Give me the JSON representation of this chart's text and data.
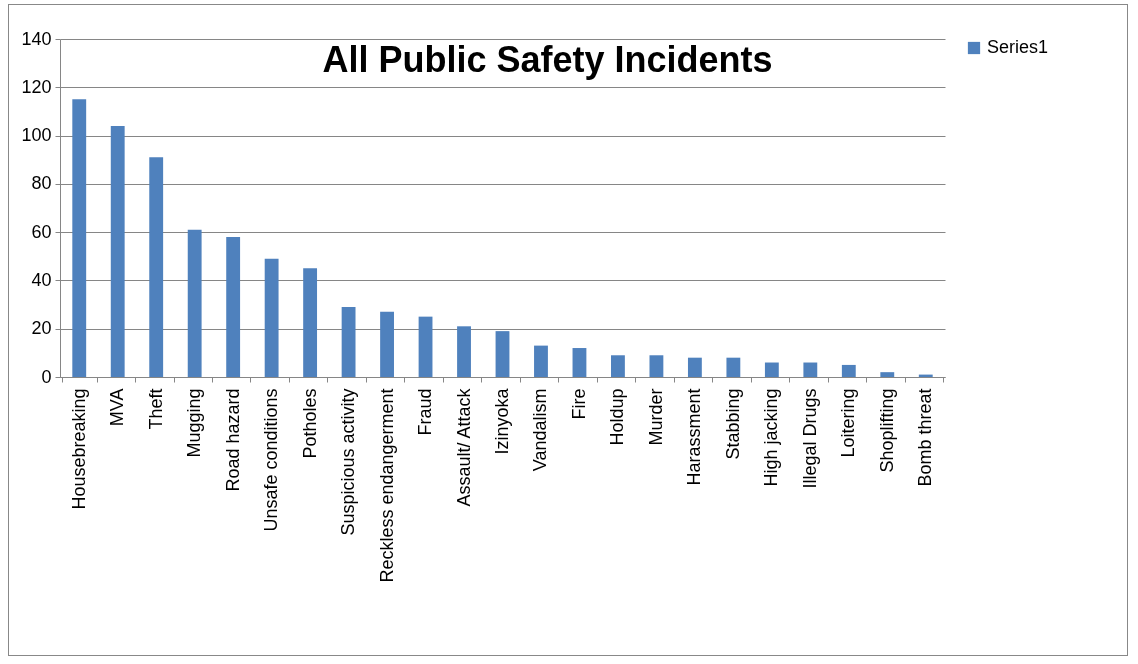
{
  "chart_data": {
    "type": "bar",
    "title": "All Public Safety Incidents",
    "categories": [
      "Housebreaking",
      "MVA",
      "Theft",
      "Mugging",
      "Road hazard",
      "Unsafe conditions",
      "Potholes",
      "Suspicious activity",
      "Reckless endangerment",
      "Fraud",
      "Assault/ Attack",
      "Izinyoka",
      "Vandalism",
      "Fire",
      "Holdup",
      "Murder",
      "Harassment",
      "Stabbing",
      "High jacking",
      "Illegal Drugs",
      "Loitering",
      "Shoplifting",
      "Bomb threat"
    ],
    "series": [
      {
        "name": "Series1",
        "color": "#4f81bd",
        "values": [
          115,
          104,
          91,
          61,
          58,
          49,
          45,
          29,
          27,
          25,
          21,
          19,
          13,
          12,
          9,
          9,
          8,
          8,
          6,
          6,
          5,
          2,
          1
        ]
      }
    ],
    "ylim": [
      0,
      140
    ],
    "yticks": [
      0,
      20,
      40,
      60,
      80,
      100,
      120,
      140
    ],
    "grid": "y",
    "legend": "right"
  }
}
